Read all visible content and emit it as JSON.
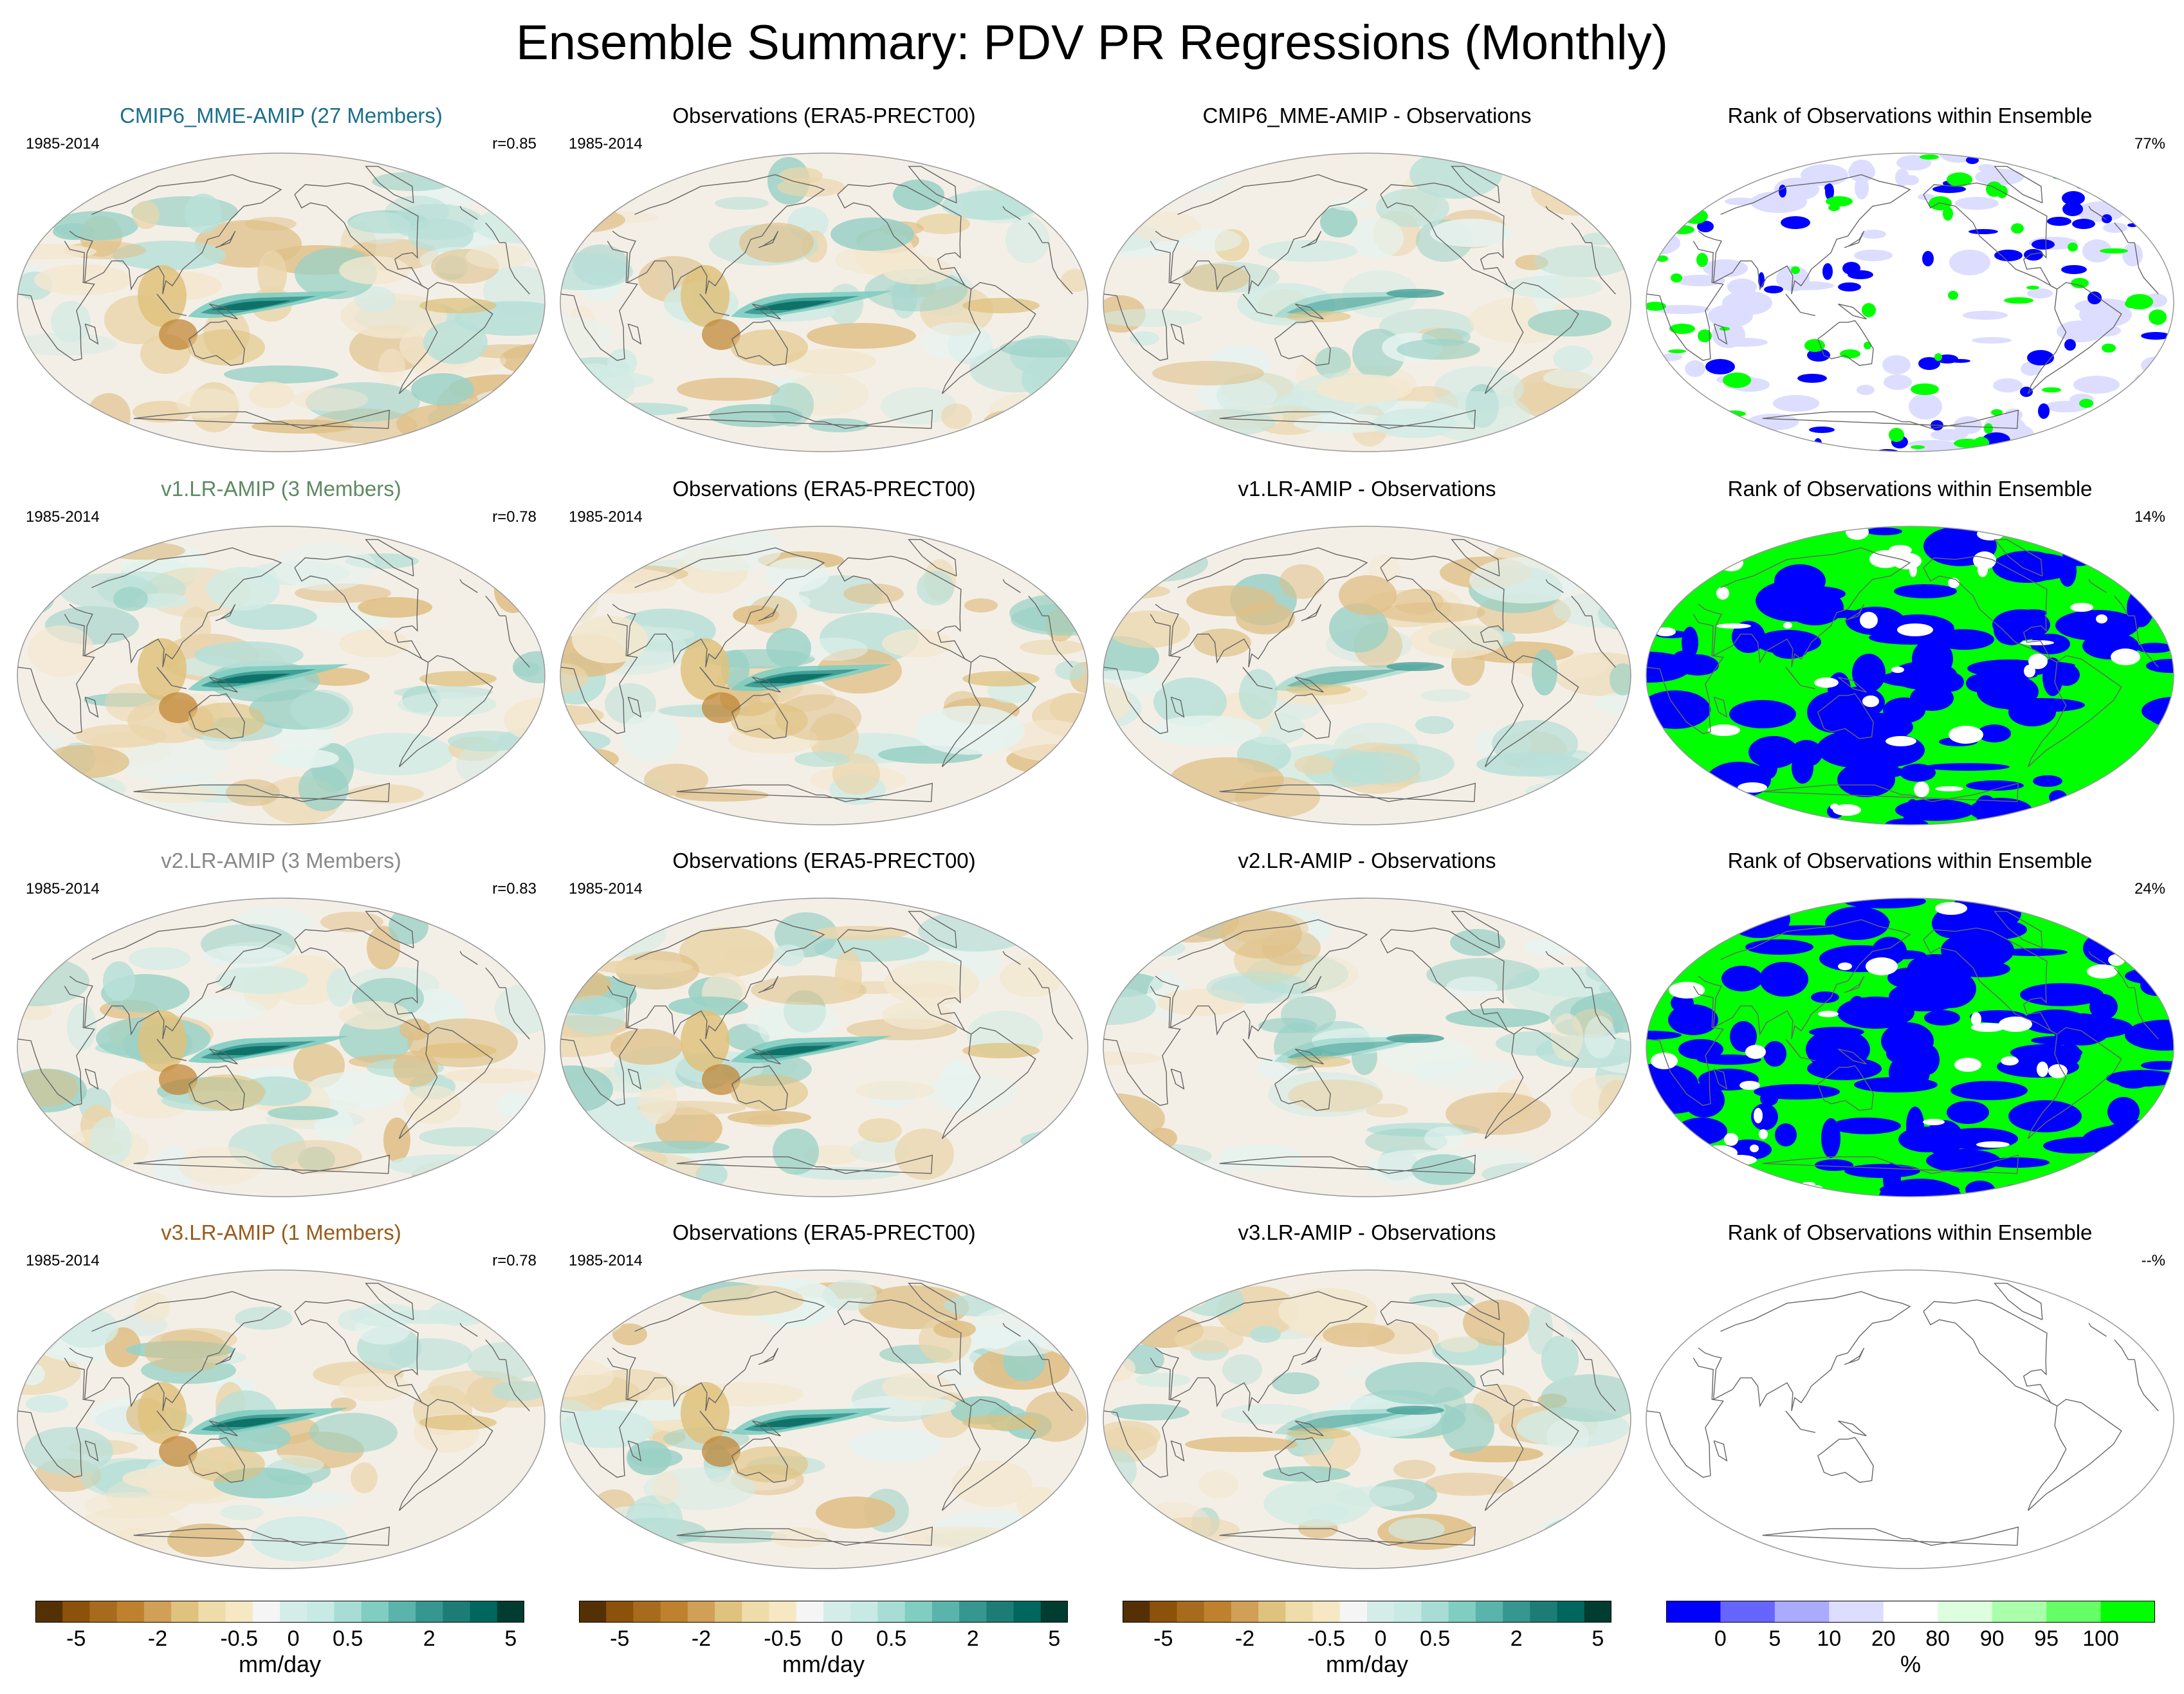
{
  "figure": {
    "title": "Ensemble Summary: PDV PR Regressions (Monthly)"
  },
  "rows": [
    {
      "model": {
        "title": "CMIP6_MME-AMIP (27 Members)",
        "title_color": "#1b6f8c",
        "period": "1985-2014",
        "corr": "r=0.85"
      },
      "obs": {
        "title": "Observations (ERA5-PRECT00)",
        "period": "1985-2014"
      },
      "diff": {
        "title": "CMIP6_MME-AMIP - Observations"
      },
      "rank": {
        "title": "Rank of Observations within Ensemble",
        "percent": "77%",
        "pattern": "sparse"
      }
    },
    {
      "model": {
        "title": "v1.LR-AMIP (3 Members)",
        "title_color": "#5e8a63",
        "period": "1985-2014",
        "corr": "r=0.78"
      },
      "obs": {
        "title": "Observations (ERA5-PRECT00)",
        "period": "1985-2014"
      },
      "diff": {
        "title": "v1.LR-AMIP - Observations"
      },
      "rank": {
        "title": "Rank of Observations within Ensemble",
        "percent": "14%",
        "pattern": "dense"
      }
    },
    {
      "model": {
        "title": "v2.LR-AMIP (3 Members)",
        "title_color": "#888888",
        "period": "1985-2014",
        "corr": "r=0.83"
      },
      "obs": {
        "title": "Observations (ERA5-PRECT00)",
        "period": "1985-2014"
      },
      "diff": {
        "title": "v2.LR-AMIP - Observations"
      },
      "rank": {
        "title": "Rank of Observations within Ensemble",
        "percent": "24%",
        "pattern": "dense"
      }
    },
    {
      "model": {
        "title": "v3.LR-AMIP (1 Members)",
        "title_color": "#9a5a1a",
        "period": "1985-2014",
        "corr": "r=0.78"
      },
      "obs": {
        "title": "Observations (ERA5-PRECT00)",
        "period": "1985-2014"
      },
      "diff": {
        "title": "v3.LR-AMIP - Observations"
      },
      "rank": {
        "title": "Rank of Observations within Ensemble",
        "percent": "--%",
        "pattern": "empty"
      }
    }
  ],
  "colorbars": [
    {
      "unit": "mm/day",
      "ticks": [
        "-5",
        "-2",
        "-0.5",
        "0",
        "0.5",
        "2",
        "5"
      ],
      "colors": [
        "#543005",
        "#8c510a",
        "#a66b1d",
        "#bf812d",
        "#cfa055",
        "#dfc27d",
        "#eedcaa",
        "#f6e8c3",
        "#f5f5f5",
        "#d5ede8",
        "#c7eae5",
        "#a8ddd5",
        "#80cdc1",
        "#5ab4ac",
        "#35978f",
        "#1d7d74",
        "#01665e",
        "#003c30"
      ]
    },
    {
      "unit": "mm/day",
      "ticks": [
        "-5",
        "-2",
        "-0.5",
        "0",
        "0.5",
        "2",
        "5"
      ],
      "colors": [
        "#543005",
        "#8c510a",
        "#a66b1d",
        "#bf812d",
        "#cfa055",
        "#dfc27d",
        "#eedcaa",
        "#f6e8c3",
        "#f5f5f5",
        "#d5ede8",
        "#c7eae5",
        "#a8ddd5",
        "#80cdc1",
        "#5ab4ac",
        "#35978f",
        "#1d7d74",
        "#01665e",
        "#003c30"
      ]
    },
    {
      "unit": "mm/day",
      "ticks": [
        "-5",
        "-2",
        "-0.5",
        "0",
        "0.5",
        "2",
        "5"
      ],
      "colors": [
        "#543005",
        "#8c510a",
        "#a66b1d",
        "#bf812d",
        "#cfa055",
        "#dfc27d",
        "#eedcaa",
        "#f6e8c3",
        "#f5f5f5",
        "#d5ede8",
        "#c7eae5",
        "#a8ddd5",
        "#80cdc1",
        "#5ab4ac",
        "#35978f",
        "#1d7d74",
        "#01665e",
        "#003c30"
      ]
    },
    {
      "unit": "%",
      "ticks": [
        "0",
        "5",
        "10",
        "20",
        "80",
        "90",
        "95",
        "100"
      ],
      "colors": [
        "#0000ff",
        "#6666ff",
        "#aaaaff",
        "#ddddff",
        "#ffffff",
        "#ddffdd",
        "#aaffaa",
        "#66ff66",
        "#00ff00"
      ]
    }
  ]
}
